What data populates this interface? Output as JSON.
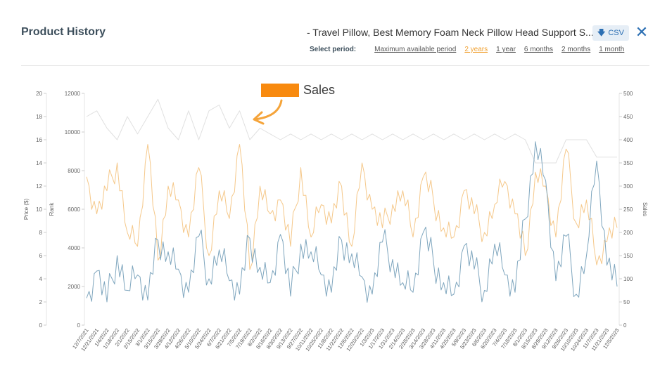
{
  "header": {
    "title": "Product History",
    "product_name": "- Travel Pillow, Best Memory Foam Neck Pillow Head Support S...",
    "csv_label": "CSV",
    "csv_icon": "download-arrow-icon",
    "close_icon": "close-icon"
  },
  "period": {
    "label": "Select period:",
    "options": [
      "Maximum available period",
      "2 years",
      "1 year",
      "6 months",
      "2 months",
      "1 month"
    ],
    "active": "2 years"
  },
  "annotation": {
    "legend_label": "Sales",
    "swatch_color": "#f88a0f"
  },
  "chart_data": {
    "type": "line",
    "axes": {
      "price": {
        "label": "Price ($)",
        "range": [
          0,
          20
        ],
        "ticks": [
          "0",
          "2",
          "4",
          "6",
          "8",
          "10",
          "12",
          "14",
          "16",
          "18",
          "20"
        ]
      },
      "rank": {
        "label": "Rank",
        "range": [
          0,
          12000
        ],
        "ticks": [
          "0",
          "2000",
          "4000",
          "6000",
          "8000",
          "10000",
          "12000"
        ]
      },
      "sales": {
        "label": "Sales",
        "range": [
          0,
          500
        ],
        "ticks": [
          "0",
          "50",
          "100",
          "150",
          "200",
          "250",
          "300",
          "350",
          "400",
          "450",
          "500"
        ]
      }
    },
    "x": [
      "12/7/2021",
      "12/21/2021",
      "1/4/2022",
      "1/18/2022",
      "2/1/2022",
      "2/15/2022",
      "3/1/2022",
      "3/15/2022",
      "3/29/2022",
      "4/12/2022",
      "4/26/2022",
      "5/10/2022",
      "5/24/2022",
      "6/7/2022",
      "6/21/2022",
      "7/5/2022",
      "7/19/2022",
      "8/2/2022",
      "8/16/2022",
      "8/30/2022",
      "9/13/2022",
      "9/27/2022",
      "10/11/2022",
      "10/25/2022",
      "11/8/2022",
      "11/22/2022",
      "12/6/2022",
      "12/20/2022",
      "1/3/2023",
      "1/17/2023",
      "1/31/2023",
      "2/14/2023",
      "2/28/2023",
      "3/14/2023",
      "3/28/2023",
      "4/11/2023",
      "4/25/2023",
      "5/9/2023",
      "5/23/2023",
      "6/6/2023",
      "6/20/2023",
      "7/4/2023",
      "7/18/2023",
      "8/1/2023",
      "8/15/2023",
      "8/29/2023",
      "9/12/2023",
      "9/26/2023",
      "10/10/2023",
      "10/24/2023",
      "11/7/2023",
      "11/21/2023",
      "12/5/2023"
    ],
    "series": [
      {
        "name": "Sales",
        "axis": "sales",
        "color": "#f5c88a",
        "values": [
          320,
          240,
          290,
          350,
          200,
          170,
          390,
          140,
          300,
          270,
          190,
          340,
          150,
          290,
          230,
          390,
          120,
          300,
          240,
          270,
          170,
          340,
          190,
          260,
          220,
          300,
          170,
          350,
          250,
          210,
          260,
          290,
          190,
          320,
          270,
          210,
          190,
          290,
          240,
          200,
          260,
          310,
          240,
          150,
          330,
          300,
          190,
          380,
          220,
          270,
          130,
          180,
          210
        ]
      },
      {
        "name": "Rank",
        "axis": "rank",
        "color": "#7fa6be",
        "values": [
          1400,
          2800,
          1200,
          3600,
          1800,
          2600,
          1300,
          4400,
          3800,
          2900,
          1700,
          4600,
          2400,
          3900,
          2300,
          1600,
          4500,
          3000,
          2200,
          4700,
          1500,
          4200,
          3800,
          2600,
          1700,
          4400,
          3700,
          2500,
          1600,
          4300,
          3400,
          2200,
          1700,
          4800,
          3300,
          2200,
          1600,
          4100,
          2900,
          1800,
          4200,
          2600,
          1700,
          5500,
          9500,
          7500,
          2300,
          4600,
          1600,
          3600,
          8500,
          3100,
          2000
        ]
      },
      {
        "name": "Price",
        "axis": "price",
        "color": "#e0e0e0",
        "values": [
          18,
          18.5,
          17,
          16,
          18,
          16.5,
          18,
          19.5,
          17,
          16,
          18.5,
          16,
          18.5,
          19,
          17,
          18.5,
          16,
          17,
          16.5,
          16,
          16.5,
          16,
          16.5,
          16,
          16.5,
          16,
          16.5,
          16,
          16.5,
          16,
          16.5,
          16,
          16.5,
          16,
          16.5,
          16,
          16.5,
          16,
          16.5,
          16,
          16.5,
          16,
          16.5,
          16,
          14,
          14,
          14,
          16,
          16,
          16,
          14.5,
          14.5,
          14.5
        ]
      }
    ],
    "grid": false,
    "legend": "top-center"
  }
}
